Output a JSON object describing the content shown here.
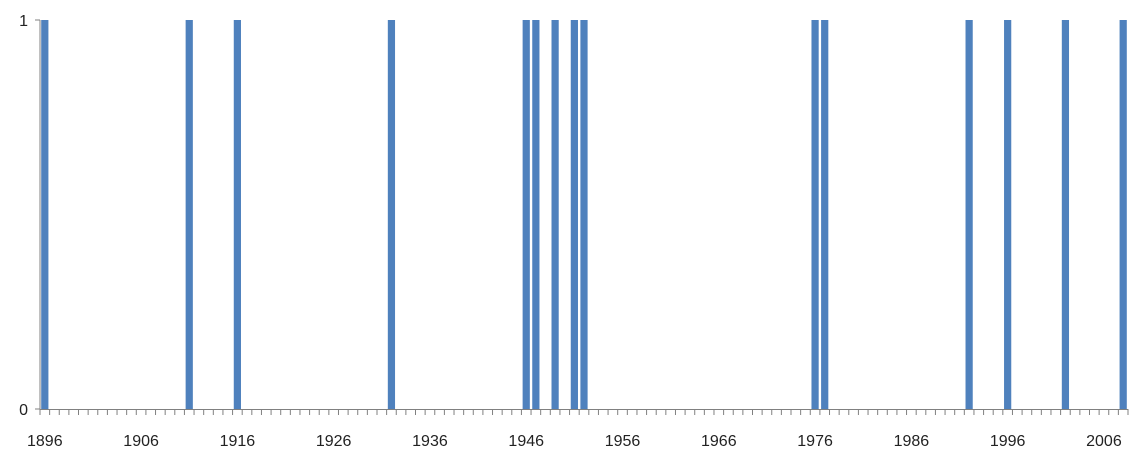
{
  "chart_data": {
    "type": "bar",
    "title": "",
    "xlabel": "",
    "ylabel": "",
    "x_range": [
      1896,
      2008
    ],
    "x_tick_labels": [
      "1896",
      "1906",
      "1916",
      "1926",
      "1936",
      "1946",
      "1956",
      "1966",
      "1976",
      "1986",
      "1996",
      "2006"
    ],
    "y_tick_labels": [
      "0",
      "1"
    ],
    "ylim": [
      0,
      1
    ],
    "grid": false,
    "legend": "none",
    "bar_color": "#4f81bd",
    "axis_color": "#808080",
    "series": [
      {
        "x": [
          1896,
          1911,
          1916,
          1932,
          1946,
          1947,
          1949,
          1951,
          1952,
          1976,
          1977,
          1992,
          1996,
          2002,
          2008
        ],
        "values": [
          1,
          1,
          1,
          1,
          1,
          1,
          1,
          1,
          1,
          1,
          1,
          1,
          1,
          1,
          1
        ]
      }
    ]
  }
}
